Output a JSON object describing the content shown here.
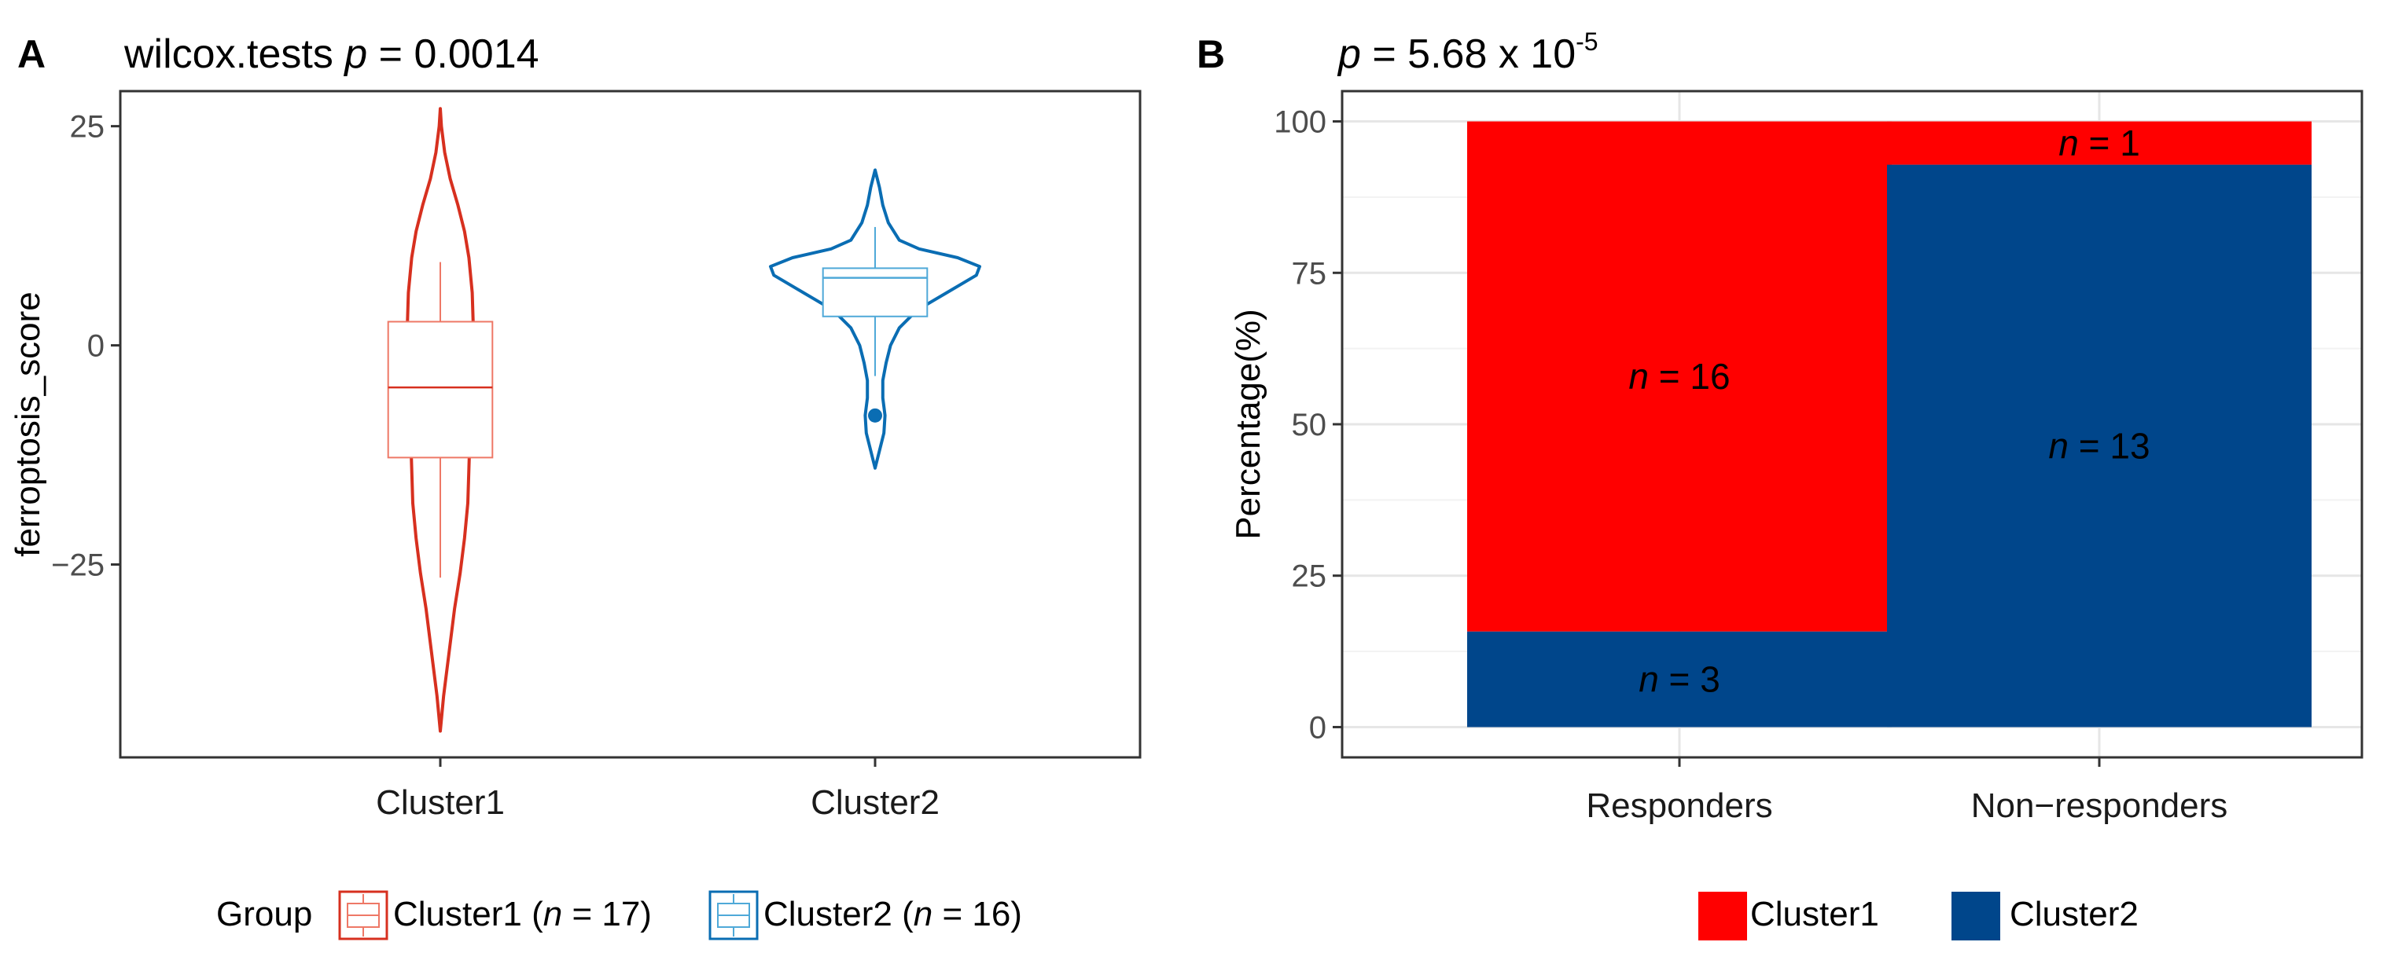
{
  "chart_data": [
    {
      "panel": "A",
      "type": "violin",
      "title": "wilcox.tests p = 0.0014",
      "title_parts": {
        "prefix": "wilcox.tests ",
        "p_symbol": "p",
        "value": " = 0.0014"
      },
      "xlabel": "",
      "ylabel": "ferroptosis_score",
      "ylim": [
        -47,
        29
      ],
      "yticks": [
        25,
        0,
        -25
      ],
      "ytick_labels": [
        "25",
        "0",
        "−25"
      ],
      "categories": [
        "Cluster1",
        "Cluster2"
      ],
      "series": [
        {
          "name": "Cluster1",
          "n": 17,
          "color": "#D7301F",
          "box_color": "#EE7866",
          "violin_min": -44,
          "violin_max": 27,
          "violin_shape": [
            [
              -44,
              0
            ],
            [
              -40,
              0.03
            ],
            [
              -35,
              0.08
            ],
            [
              -30,
              0.13
            ],
            [
              -26,
              0.18
            ],
            [
              -22,
              0.22
            ],
            [
              -18,
              0.25
            ],
            [
              -14,
              0.26
            ],
            [
              -10,
              0.27
            ],
            [
              -6,
              0.28
            ],
            [
              -2,
              0.29
            ],
            [
              2,
              0.3
            ],
            [
              6,
              0.29
            ],
            [
              10,
              0.26
            ],
            [
              13,
              0.22
            ],
            [
              16,
              0.16
            ],
            [
              19,
              0.09
            ],
            [
              22,
              0.04
            ],
            [
              25,
              0.01
            ],
            [
              27,
              0
            ]
          ],
          "box": {
            "whisker_low": -26.5,
            "q1": -12.8,
            "median": -4.8,
            "q3": 2.7,
            "whisker_high": 9.5
          },
          "outliers": []
        },
        {
          "name": "Cluster2",
          "n": 16,
          "color": "#0A6DB3",
          "box_color": "#4FA9D8",
          "violin_min": -14,
          "violin_max": 20,
          "violin_shape": [
            [
              -14,
              0
            ],
            [
              -12,
              0.04
            ],
            [
              -10,
              0.08
            ],
            [
              -8,
              0.09
            ],
            [
              -6,
              0.07
            ],
            [
              -4,
              0.07
            ],
            [
              -2,
              0.1
            ],
            [
              0,
              0.14
            ],
            [
              2,
              0.22
            ],
            [
              4,
              0.38
            ],
            [
              6,
              0.65
            ],
            [
              8,
              0.92
            ],
            [
              9,
              0.95
            ],
            [
              10,
              0.75
            ],
            [
              11,
              0.4
            ],
            [
              12,
              0.22
            ],
            [
              14,
              0.12
            ],
            [
              16,
              0.07
            ],
            [
              18,
              0.04
            ],
            [
              20,
              0
            ]
          ],
          "box": {
            "whisker_low": -3.5,
            "q1": 3.3,
            "median": 7.7,
            "q3": 8.8,
            "whisker_high": 13.5
          },
          "outliers": [
            -8
          ]
        }
      ],
      "legend": {
        "title": "Group",
        "entries": [
          {
            "name": "Cluster1",
            "n_prefix": " (",
            "n_symbol": "n",
            "n_suffix": " = 17)"
          },
          {
            "name": "Cluster2",
            "n_prefix": " (",
            "n_symbol": "n",
            "n_suffix": " = 16)"
          }
        ],
        "position": "bottom"
      },
      "grid": false
    },
    {
      "panel": "B",
      "type": "bar",
      "stacked": true,
      "title": "p = 5.68 x 10-5",
      "title_parts": {
        "p_symbol": "p",
        "value": " = 5.68 x 10",
        "exponent": "-5"
      },
      "xlabel": "",
      "ylabel": "Percentage(%)",
      "ylim": [
        -5,
        105
      ],
      "yticks": [
        0,
        25,
        50,
        75,
        100
      ],
      "ytick_labels": [
        "0",
        "25",
        "50",
        "75",
        "100"
      ],
      "categories": [
        "Responders",
        "Non−responders"
      ],
      "series": [
        {
          "name": "Cluster2",
          "color": "#00468B",
          "values": [
            15.79,
            92.86
          ],
          "counts": [
            3,
            13
          ],
          "labels": [
            "= 3",
            "= 13"
          ]
        },
        {
          "name": "Cluster1",
          "color": "#FF0000",
          "values": [
            84.21,
            7.14
          ],
          "counts": [
            16,
            1
          ],
          "labels": [
            "= 16",
            "= 1"
          ]
        }
      ],
      "label_symbol": "n",
      "legend": {
        "entries": [
          "Cluster1",
          "Cluster2"
        ],
        "colors": [
          "#FF0000",
          "#00468B"
        ],
        "position": "bottom"
      },
      "grid": true
    }
  ]
}
